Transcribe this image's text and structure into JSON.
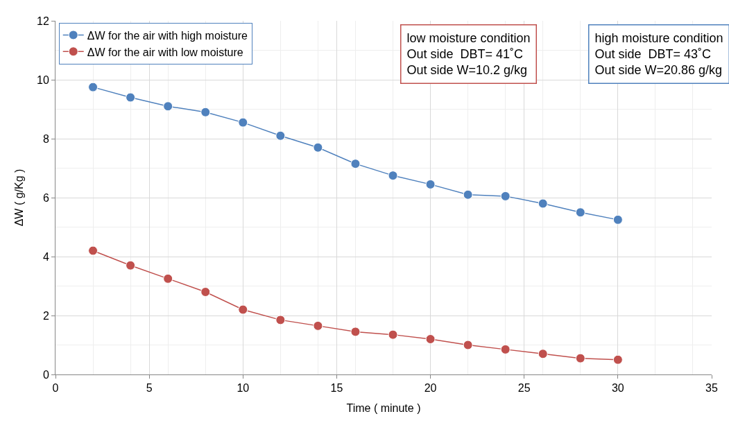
{
  "chart_data": {
    "type": "line",
    "xlabel": "Time ( minute )",
    "ylabel": "ΔW ( g/Kg )",
    "x": [
      2,
      4,
      6,
      8,
      10,
      12,
      14,
      16,
      18,
      20,
      22,
      24,
      26,
      28,
      30
    ],
    "series": [
      {
        "name": "ΔW for the air with high moisture",
        "color": "#4f81bd",
        "values": [
          9.75,
          9.4,
          9.1,
          8.9,
          8.55,
          8.1,
          7.7,
          7.15,
          6.75,
          6.45,
          6.1,
          6.05,
          5.8,
          5.5,
          5.25
        ]
      },
      {
        "name": "ΔW for the air with low moisture",
        "color": "#c0504d",
        "values": [
          4.2,
          3.7,
          3.25,
          2.8,
          2.2,
          1.85,
          1.65,
          1.45,
          1.35,
          1.2,
          1.0,
          0.85,
          0.7,
          0.55,
          0.5
        ]
      }
    ],
    "xlim": [
      0,
      35
    ],
    "xticks": [
      0,
      5,
      10,
      15,
      20,
      25,
      30,
      35
    ],
    "ylim": [
      0,
      12
    ],
    "yticks": [
      0,
      2,
      4,
      6,
      8,
      10,
      12
    ],
    "annotations": [
      "low moisture condition\nOut side  DBT= 41˚C\nOut side W=10.2 g/kg",
      "high moisture condition\nOut side  DBT= 43˚C\nOut side W=20.86 g/kg"
    ],
    "grid": true,
    "legend": "top left",
    "marker": "circle",
    "line_style": "solid"
  }
}
